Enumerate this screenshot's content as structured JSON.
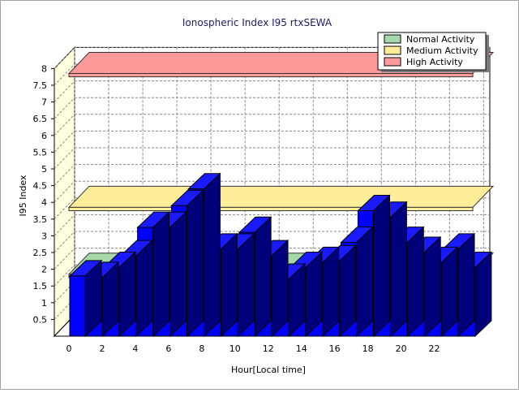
{
  "chart_data": {
    "type": "bar",
    "title": "Ionospheric Index I95 rtxSEWA",
    "xlabel": "Hour[Local time]",
    "ylabel": "I95 Index",
    "ylim": [
      0,
      8
    ],
    "yticks": [
      "0.5",
      "1",
      "1.5",
      "2",
      "2.5",
      "3",
      "3.5",
      "4",
      "4.5",
      "5",
      "5.5",
      "6",
      "6.5",
      "7",
      "7.5",
      "8"
    ],
    "xticks": [
      "0",
      "2",
      "4",
      "6",
      "8",
      "10",
      "12",
      "14",
      "16",
      "18",
      "20",
      "22"
    ],
    "x": [
      0,
      1,
      2,
      3,
      4,
      5,
      6,
      7,
      8,
      9,
      10,
      11,
      12,
      13,
      14,
      15,
      16,
      17,
      18,
      19,
      20,
      21,
      22,
      23
    ],
    "series": [
      {
        "values": [
          1.8,
          1.75,
          2.05,
          2.4,
          3.25,
          3.25,
          3.9,
          4.4,
          2.6,
          2.6,
          3.1,
          2.4,
          1.7,
          2.05,
          2.2,
          2.25,
          2.8,
          3.75,
          3.55,
          2.8,
          2.5,
          2.2,
          2.6,
          2.05
        ],
        "color": "#0000ff"
      }
    ],
    "bands": [
      {
        "name": "Normal Activity",
        "from": 1.9,
        "to": 2.0,
        "color": "#a6d8a8"
      },
      {
        "name": "Medium Activity",
        "from": 3.9,
        "to": 4.0,
        "color": "#ffee99"
      },
      {
        "name": "High Activity",
        "from": 7.9,
        "to": 8.0,
        "color": "#ff9a9a"
      }
    ],
    "legend": {
      "position": "top-right",
      "items": [
        {
          "label": "Normal Activity",
          "color": "#a6d8a8"
        },
        {
          "label": "Medium Activity",
          "color": "#ffee99"
        },
        {
          "label": "High Activity",
          "color": "#ff9a9a"
        }
      ]
    },
    "grid": true,
    "style": "3d"
  }
}
